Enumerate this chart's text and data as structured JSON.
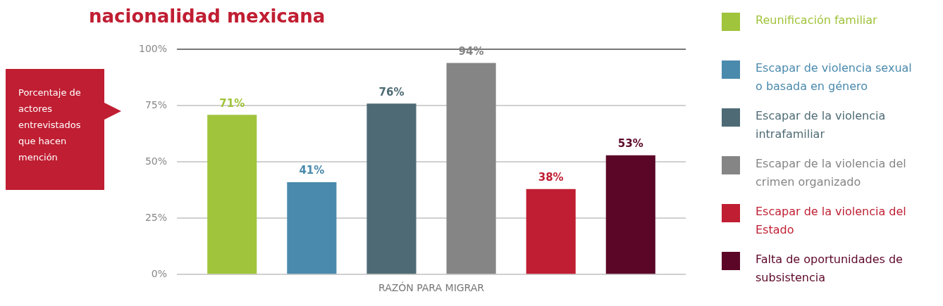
{
  "chart_data": {
    "type": "bar",
    "title": "nacionalidad mexicana",
    "annotations": [
      "Porcentaje de actores entrevistados que hacen mención"
    ],
    "xlabel": "RAZÓN PARA MIGRAR",
    "categories": [
      null
    ],
    "series": [
      {
        "name": "Reunificación familiar",
        "color": "#a0c43c",
        "values": [
          71
        ],
        "value_labels": [
          "71%"
        ]
      },
      {
        "name": "Escapar de violencia sexual o basada en género",
        "color": "#4a8aad",
        "values": [
          41
        ],
        "value_labels": [
          "41%"
        ]
      },
      {
        "name": "Escapar de la violencia intrafamiliar",
        "color": "#4e6b75",
        "values": [
          76
        ],
        "value_labels": [
          "76%"
        ]
      },
      {
        "name": "Escapar de la violencia del crimen organizado",
        "color": "#858585",
        "values": [
          94
        ],
        "value_labels": [
          "94%"
        ]
      },
      {
        "name": "Escapar de la violencia del Estado",
        "color": "#c01e32",
        "values": [
          38
        ],
        "value_labels": [
          "38%"
        ]
      },
      {
        "name": "Falta de oportunidades de subsistencia",
        "color": "#5c0627",
        "values": [
          53
        ],
        "value_labels": [
          "53%"
        ]
      }
    ],
    "ylim": [
      0,
      100
    ],
    "yticks": [
      {
        "value": 0,
        "label": "0%"
      },
      {
        "value": 25,
        "label": "25%"
      },
      {
        "value": 50,
        "label": "50%"
      },
      {
        "value": 75,
        "label": "75%"
      },
      {
        "value": 100,
        "label": "100%"
      }
    ],
    "grid": "y",
    "legend": "right"
  }
}
